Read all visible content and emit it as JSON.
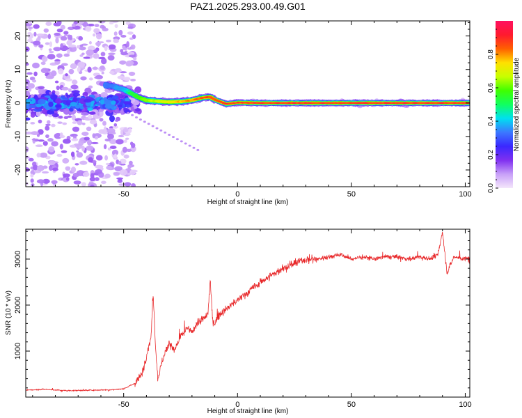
{
  "figure": {
    "title": "PAZ1.2025.293.00.49.G01"
  },
  "chart_data": [
    {
      "type": "heatmap",
      "title": "",
      "xlabel": "Height of straight line (km)",
      "ylabel": "Frequency (Hz)",
      "xlim": [
        -93,
        102
      ],
      "ylim": [
        -25,
        24.5
      ],
      "x_ticks": [
        -50,
        0,
        50,
        100
      ],
      "y_ticks": [
        -20,
        -10,
        0,
        10,
        20
      ],
      "grid": false,
      "colormap": "rainbow (violet to red)",
      "colorbar": {
        "label": "Normalized spectral amplitude",
        "range": [
          0,
          1
        ],
        "ticks": [
          0.0,
          0.2,
          0.4,
          0.6,
          0.8
        ],
        "colors": [
          "#f4e6fb",
          "#c8a0f8",
          "#8030f0",
          "#3a28ff",
          "#3c78ff",
          "#00e0f0",
          "#10ff60",
          "#40ff00",
          "#c8ff00",
          "#ffe000",
          "#ff6000",
          "#ff1a2e",
          "#ff1060"
        ]
      },
      "ridge": {
        "x": [
          -60,
          -55,
          -50,
          -47,
          -43,
          -40,
          -35,
          -30,
          -25,
          -20,
          -15,
          -12,
          -10,
          -5,
          0,
          10,
          25,
          50,
          75,
          100
        ],
        "frequency_hz": [
          5.5,
          5.0,
          4.0,
          3.0,
          1.5,
          0.8,
          0.5,
          0.3,
          0.4,
          0.8,
          1.6,
          1.8,
          1.0,
          -0.3,
          0.1,
          0.0,
          0.0,
          0.0,
          0.0,
          0.0
        ],
        "amplitude": [
          0.35,
          0.35,
          0.4,
          0.55,
          0.6,
          0.65,
          0.7,
          0.75,
          0.8,
          0.85,
          0.9,
          0.9,
          0.9,
          0.9,
          0.9,
          0.95,
          0.95,
          0.95,
          0.95,
          0.95
        ]
      }
    },
    {
      "type": "line",
      "title": "",
      "xlabel": "Height of straight line (km)",
      "ylabel": "SNR (10 * v/v)",
      "xlim": [
        -93,
        102
      ],
      "ylim": [
        0,
        3650
      ],
      "x_ticks": [
        -50,
        0,
        50,
        100
      ],
      "y_ticks": [
        1000,
        2000,
        3000
      ],
      "grid": false,
      "line_color": "#e8282a",
      "series": [
        {
          "x": [
            -93,
            -85,
            -75,
            -65,
            -55,
            -50,
            -45,
            -42,
            -40,
            -38,
            -37,
            -36,
            -35,
            -33,
            -30,
            -28,
            -25,
            -22,
            -20,
            -18,
            -15,
            -13,
            -12,
            -11,
            -10,
            -8,
            -5,
            -3,
            0,
            5,
            10,
            15,
            20,
            25,
            30,
            35,
            40,
            45,
            50,
            55,
            60,
            65,
            70,
            75,
            80,
            85,
            88,
            90,
            92,
            95,
            100,
            102
          ],
          "y": [
            150,
            170,
            140,
            150,
            160,
            180,
            300,
            500,
            900,
            1300,
            2250,
            1100,
            400,
            800,
            1200,
            1000,
            1300,
            1500,
            1400,
            1600,
            1700,
            1800,
            2550,
            1700,
            1600,
            1800,
            1900,
            2000,
            2100,
            2300,
            2500,
            2650,
            2800,
            2900,
            3000,
            3000,
            3050,
            3100,
            3000,
            3050,
            3000,
            3050,
            3050,
            3000,
            3050,
            3000,
            3100,
            3600,
            2700,
            3050,
            3000,
            3050
          ]
        }
      ]
    }
  ]
}
